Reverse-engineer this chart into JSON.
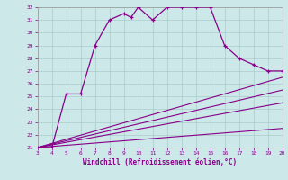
{
  "xlabel": "Windchill (Refroidissement éolien,°C)",
  "xlim": [
    3,
    20
  ],
  "ylim": [
    21,
    32
  ],
  "xticks": [
    3,
    4,
    5,
    6,
    7,
    8,
    9,
    10,
    11,
    12,
    13,
    14,
    15,
    16,
    17,
    18,
    19,
    20
  ],
  "yticks": [
    21,
    22,
    23,
    24,
    25,
    26,
    27,
    28,
    29,
    30,
    31,
    32
  ],
  "bg_color": "#cce8e8",
  "line_color": "#880088",
  "grid_color": "#aacccc",
  "curve1_x": [
    3,
    4,
    5,
    6,
    7,
    8,
    9,
    9.5,
    10,
    11,
    12,
    13,
    14,
    15,
    16,
    17,
    18,
    19,
    20
  ],
  "curve1_y": [
    21,
    21,
    25.2,
    25.2,
    29,
    31,
    31.5,
    31.2,
    32,
    31,
    32,
    32,
    32,
    32,
    29,
    28,
    27.5,
    27,
    27
  ],
  "diag_lines": [
    {
      "x": [
        3,
        20
      ],
      "y": [
        21,
        26.5
      ]
    },
    {
      "x": [
        3,
        20
      ],
      "y": [
        21,
        25.5
      ]
    },
    {
      "x": [
        3,
        20
      ],
      "y": [
        21,
        24.5
      ]
    },
    {
      "x": [
        3,
        20
      ],
      "y": [
        21,
        22.5
      ]
    }
  ]
}
